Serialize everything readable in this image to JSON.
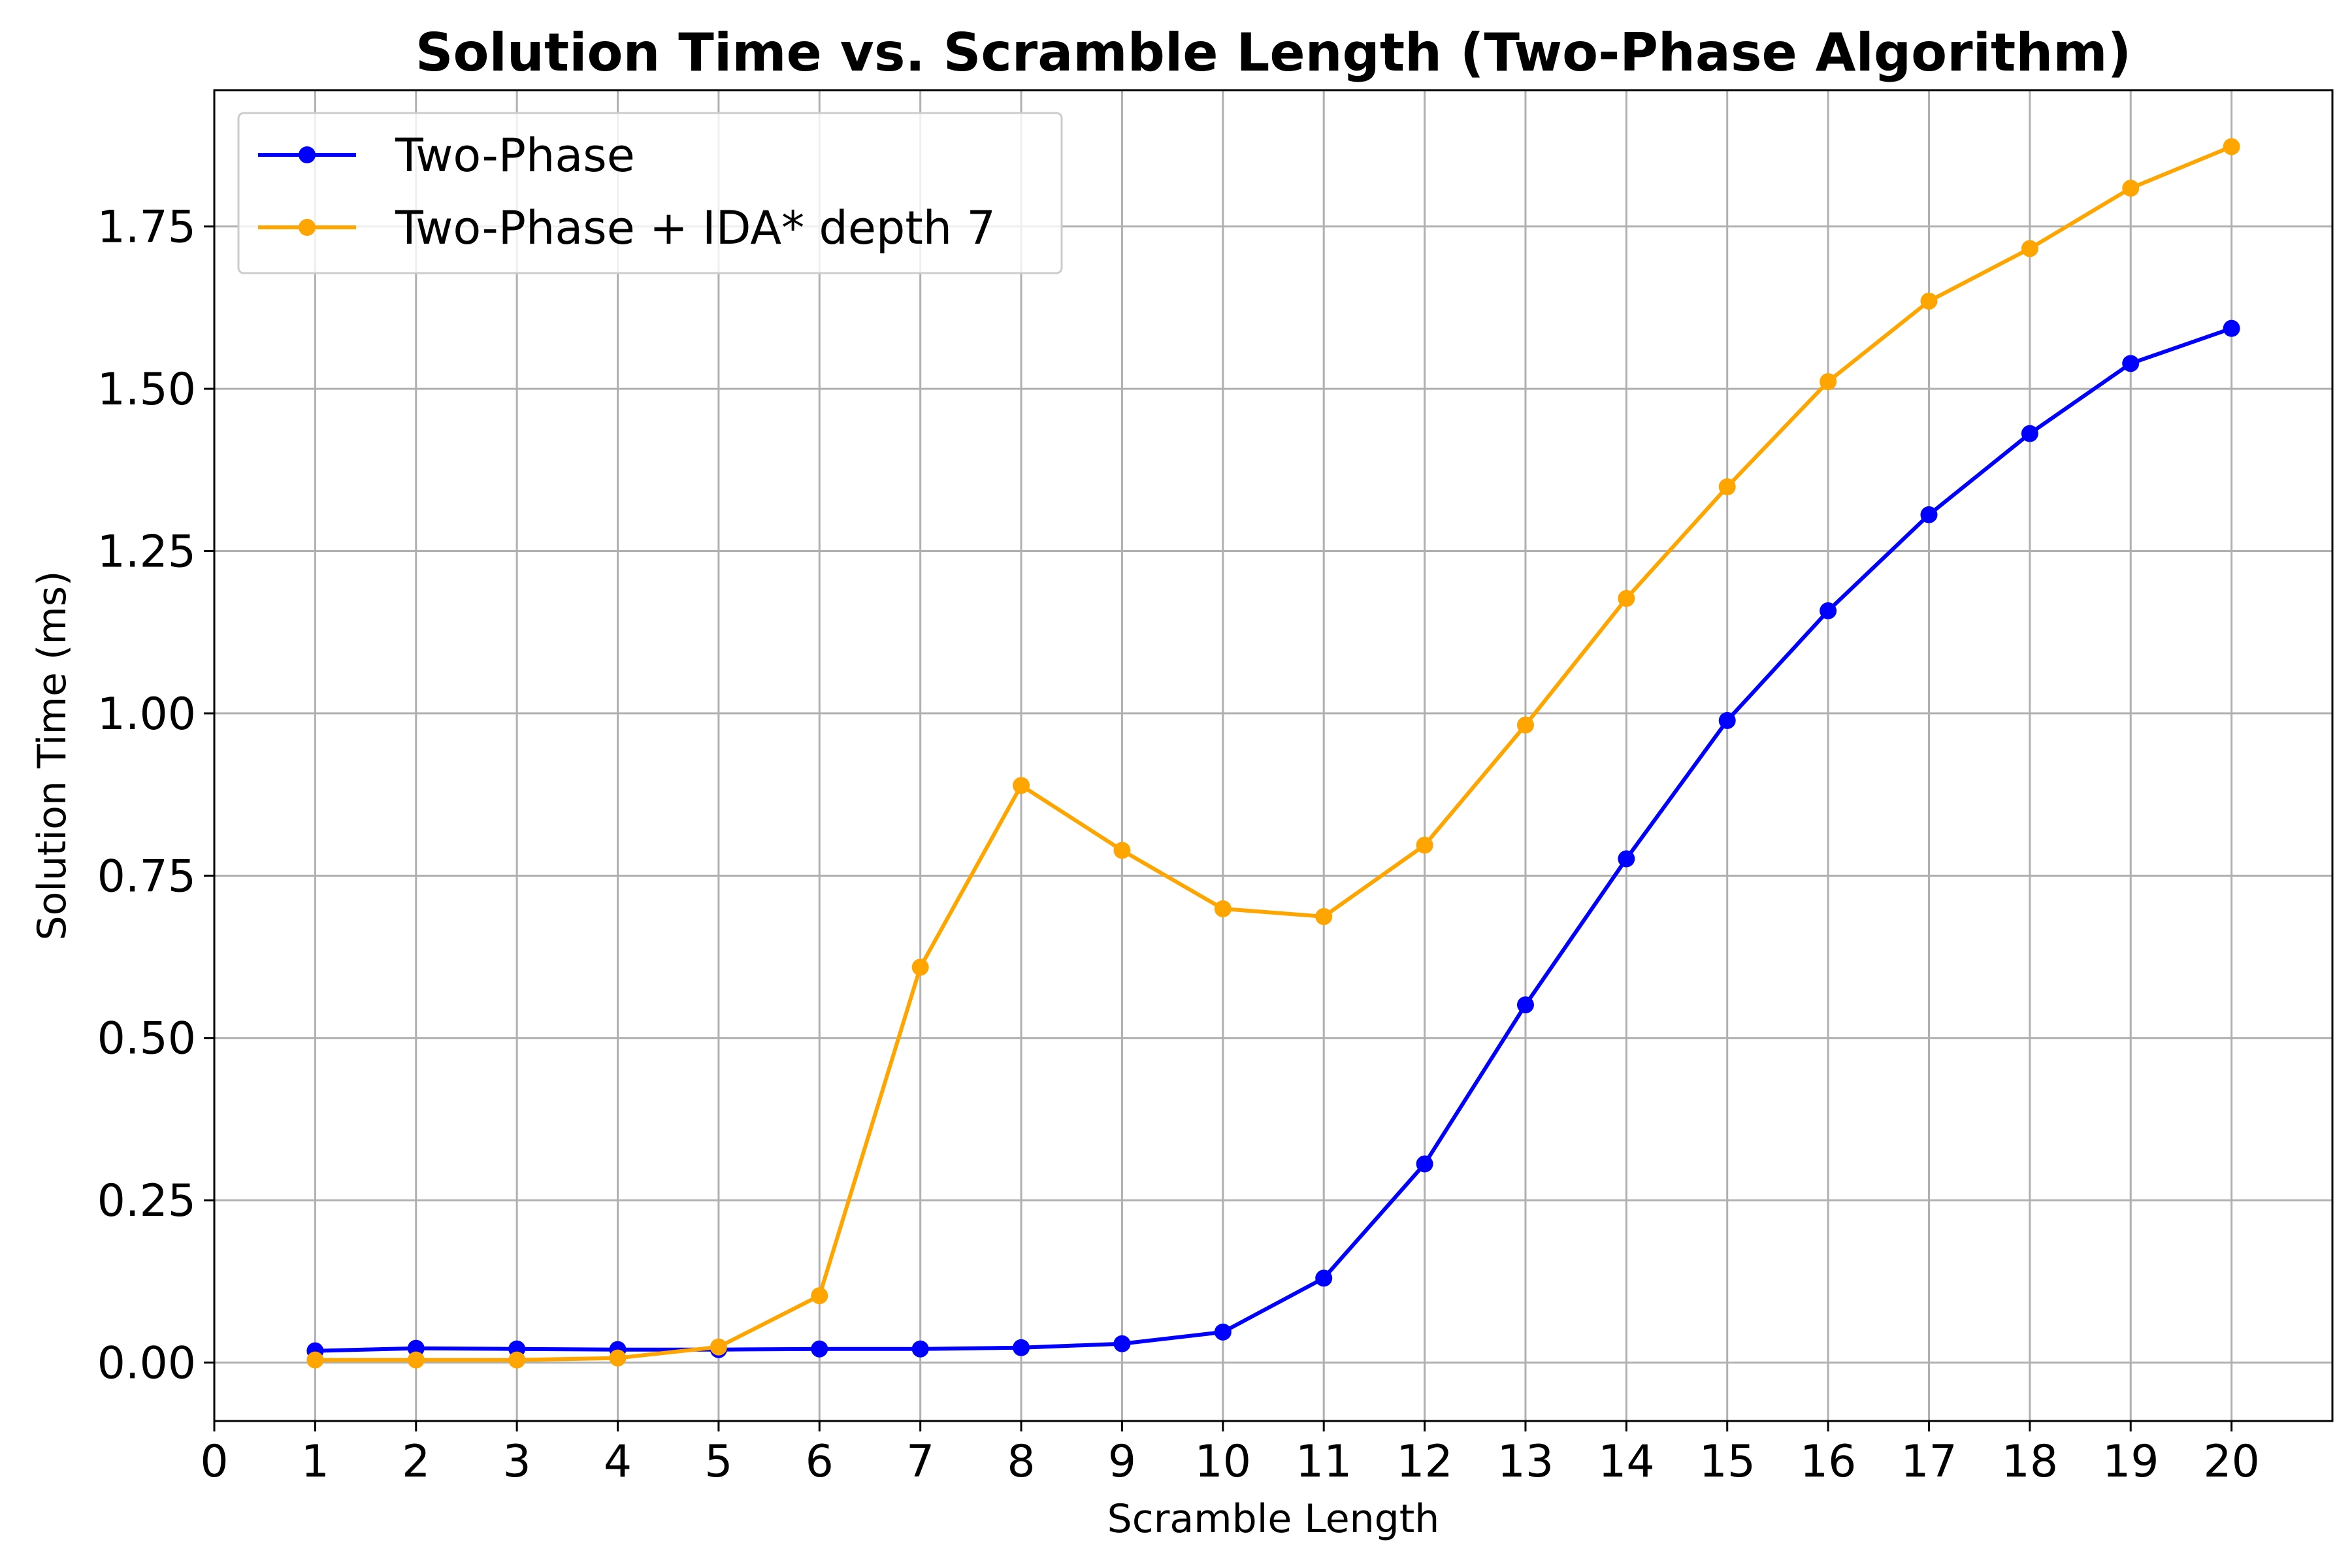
{
  "chart_data": {
    "type": "line",
    "title": "Solution Time vs. Scramble Length (Two-Phase Algorithm)",
    "xlabel": "Scramble Length",
    "ylabel": "Solution Time (ms)",
    "xlim": [
      0,
      21
    ],
    "ylim": [
      -0.09,
      1.96
    ],
    "xticks": [
      0,
      1,
      2,
      3,
      4,
      5,
      6,
      7,
      8,
      9,
      10,
      11,
      12,
      13,
      14,
      15,
      16,
      17,
      18,
      19,
      20
    ],
    "xtick_labels": [
      "0",
      "1",
      "2",
      "3",
      "4",
      "5",
      "6",
      "7",
      "8",
      "9",
      "10",
      "11",
      "12",
      "13",
      "14",
      "15",
      "16",
      "17",
      "18",
      "19",
      "20"
    ],
    "yticks": [
      0.0,
      0.25,
      0.5,
      0.75,
      1.0,
      1.25,
      1.5,
      1.75
    ],
    "ytick_labels": [
      "0.00",
      "0.25",
      "0.50",
      "0.75",
      "1.00",
      "1.25",
      "1.50",
      "1.75"
    ],
    "grid": true,
    "legend_position": "top-left",
    "x": [
      1,
      2,
      3,
      4,
      5,
      6,
      7,
      8,
      9,
      10,
      11,
      12,
      13,
      14,
      15,
      16,
      17,
      18,
      19,
      20
    ],
    "series": [
      {
        "name": "Two-Phase",
        "color": "#0000ff",
        "marker": "circle",
        "values": [
          0.018,
          0.022,
          0.021,
          0.02,
          0.02,
          0.021,
          0.021,
          0.023,
          0.029,
          0.047,
          0.13,
          0.306,
          0.551,
          0.776,
          0.989,
          1.158,
          1.306,
          1.431,
          1.539,
          1.593
        ]
      },
      {
        "name": "Two-Phase + IDA* depth 7",
        "color": "#ffa500",
        "marker": "circle",
        "values": [
          0.004,
          0.004,
          0.004,
          0.007,
          0.024,
          0.103,
          0.609,
          0.889,
          0.789,
          0.699,
          0.687,
          0.797,
          0.982,
          1.177,
          1.349,
          1.511,
          1.635,
          1.716,
          1.809,
          1.873
        ]
      }
    ]
  }
}
